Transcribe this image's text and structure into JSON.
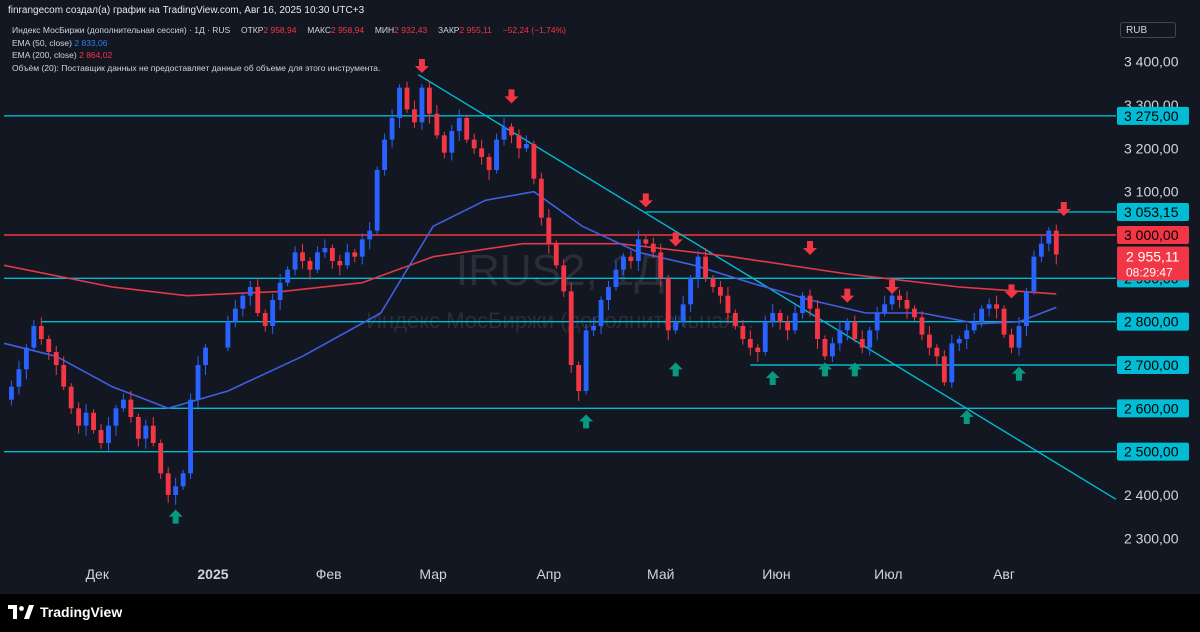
{
  "header": {
    "credit": "finrangecom создал(а) график на TradingView.com, Авг 16, 2025 10:30 UTC+3",
    "symbol": "Индекс МосБиржи (дополнительная сессия) · 1Д · RUS",
    "ohlc": {
      "open_label": "ОТКР",
      "open": "2 958,94",
      "high_label": "МАКС",
      "high": "2 958,94",
      "low_label": "МИН",
      "low": "2 932,43",
      "close_label": "ЗАКР",
      "close": "2 955,11",
      "change": "−52,24 (−1,74%)"
    },
    "ema50": {
      "label": "EMA (50, close)",
      "value": "2 833,06"
    },
    "ema200": {
      "label": "EMA (200, close)",
      "value": "2 864,02"
    },
    "volume_note": "Объём (20): Поставщик данных не предоставляет данные об объеме для этого инструмента.",
    "currency": "RUB"
  },
  "watermark": {
    "symbol": "IRUS2, 1Д",
    "name": "Индекс МосБиржи (дополнительная..."
  },
  "footer": {
    "brand": "TradingView"
  },
  "colors": {
    "background": "#131722",
    "up": "#2962ff",
    "down": "#f23645",
    "ema50": "#3f5fe0",
    "ema200": "#e0394a",
    "level": "#00bcd4",
    "resistance": "#f23645",
    "arrow_up": "#089981",
    "arrow_down": "#f23645"
  },
  "chart_data": {
    "type": "candlestick",
    "y_axis": {
      "min": 2250,
      "max": 3450,
      "ticks": [
        2300,
        2400,
        2500,
        2600,
        2700,
        2800,
        2900,
        3000,
        3100,
        3200,
        3300,
        3400
      ],
      "tick_labels": [
        "2 300,00",
        "2 400,00",
        "2 500,00",
        "2 600,00",
        "2 700,00",
        "2 800,00",
        "2 900,00",
        "3 000,00",
        "3 100,00",
        "3 200,00",
        "3 300,00",
        "3 400,00"
      ]
    },
    "x_axis": {
      "start": "2024-11-06",
      "end": "2025-08-31",
      "ticks": [
        {
          "date": "2024-12-01",
          "label": "Дек"
        },
        {
          "date": "2025-01-01",
          "label": "2025",
          "bold": true
        },
        {
          "date": "2025-02-01",
          "label": "Фев"
        },
        {
          "date": "2025-03-01",
          "label": "Мар"
        },
        {
          "date": "2025-04-01",
          "label": "Апр"
        },
        {
          "date": "2025-05-01",
          "label": "Май"
        },
        {
          "date": "2025-06-01",
          "label": "Июн"
        },
        {
          "date": "2025-07-01",
          "label": "Июл"
        },
        {
          "date": "2025-08-01",
          "label": "Авг"
        }
      ]
    },
    "closes": [
      [
        "2024-11-06",
        2620
      ],
      [
        "2024-11-08",
        2650
      ],
      [
        "2024-11-10",
        2690
      ],
      [
        "2024-11-12",
        2740
      ],
      [
        "2024-11-14",
        2790
      ],
      [
        "2024-11-16",
        2760
      ],
      [
        "2024-11-18",
        2730
      ],
      [
        "2024-11-20",
        2700
      ],
      [
        "2024-11-22",
        2650
      ],
      [
        "2024-11-24",
        2600
      ],
      [
        "2024-11-26",
        2560
      ],
      [
        "2024-11-28",
        2590
      ],
      [
        "2024-11-30",
        2550
      ],
      [
        "2024-12-02",
        2520
      ],
      [
        "2024-12-04",
        2560
      ],
      [
        "2024-12-06",
        2600
      ],
      [
        "2024-12-08",
        2620
      ],
      [
        "2024-12-10",
        2580
      ],
      [
        "2024-12-12",
        2530
      ],
      [
        "2024-12-14",
        2560
      ],
      [
        "2024-12-16",
        2520
      ],
      [
        "2024-12-18",
        2450
      ],
      [
        "2024-12-20",
        2400
      ],
      [
        "2024-12-22",
        2420
      ],
      [
        "2024-12-24",
        2450
      ],
      [
        "2024-12-26",
        2620
      ],
      [
        "2024-12-28",
        2700
      ],
      [
        "2024-12-30",
        2740
      ],
      [
        "2025-01-05",
        2800
      ],
      [
        "2025-01-07",
        2830
      ],
      [
        "2025-01-09",
        2860
      ],
      [
        "2025-01-11",
        2880
      ],
      [
        "2025-01-13",
        2820
      ],
      [
        "2025-01-15",
        2790
      ],
      [
        "2025-01-17",
        2850
      ],
      [
        "2025-01-19",
        2890
      ],
      [
        "2025-01-21",
        2920
      ],
      [
        "2025-01-23",
        2960
      ],
      [
        "2025-01-25",
        2940
      ],
      [
        "2025-01-27",
        2920
      ],
      [
        "2025-01-29",
        2960
      ],
      [
        "2025-01-31",
        2970
      ],
      [
        "2025-02-02",
        2940
      ],
      [
        "2025-02-04",
        2930
      ],
      [
        "2025-02-06",
        2960
      ],
      [
        "2025-02-08",
        2950
      ],
      [
        "2025-02-10",
        2990
      ],
      [
        "2025-02-12",
        3010
      ],
      [
        "2025-02-14",
        3150
      ],
      [
        "2025-02-16",
        3220
      ],
      [
        "2025-02-18",
        3270
      ],
      [
        "2025-02-20",
        3340
      ],
      [
        "2025-02-22",
        3290
      ],
      [
        "2025-02-24",
        3260
      ],
      [
        "2025-02-26",
        3340
      ],
      [
        "2025-02-28",
        3280
      ],
      [
        "2025-03-02",
        3230
      ],
      [
        "2025-03-04",
        3190
      ],
      [
        "2025-03-06",
        3240
      ],
      [
        "2025-03-08",
        3270
      ],
      [
        "2025-03-10",
        3220
      ],
      [
        "2025-03-12",
        3200
      ],
      [
        "2025-03-14",
        3180
      ],
      [
        "2025-03-16",
        3150
      ],
      [
        "2025-03-18",
        3220
      ],
      [
        "2025-03-20",
        3250
      ],
      [
        "2025-03-22",
        3230
      ],
      [
        "2025-03-24",
        3200
      ],
      [
        "2025-03-26",
        3210
      ],
      [
        "2025-03-28",
        3130
      ],
      [
        "2025-03-30",
        3040
      ],
      [
        "2025-04-01",
        2980
      ],
      [
        "2025-04-03",
        2930
      ],
      [
        "2025-04-05",
        2870
      ],
      [
        "2025-04-07",
        2700
      ],
      [
        "2025-04-09",
        2640
      ],
      [
        "2025-04-11",
        2780
      ],
      [
        "2025-04-13",
        2790
      ],
      [
        "2025-04-15",
        2850
      ],
      [
        "2025-04-17",
        2880
      ],
      [
        "2025-04-19",
        2920
      ],
      [
        "2025-04-21",
        2950
      ],
      [
        "2025-04-23",
        2940
      ],
      [
        "2025-04-25",
        2990
      ],
      [
        "2025-04-27",
        2980
      ],
      [
        "2025-04-29",
        2960
      ],
      [
        "2025-05-01",
        2900
      ],
      [
        "2025-05-03",
        2780
      ],
      [
        "2025-05-05",
        2800
      ],
      [
        "2025-05-07",
        2840
      ],
      [
        "2025-05-09",
        2900
      ],
      [
        "2025-05-11",
        2950
      ],
      [
        "2025-05-13",
        2900
      ],
      [
        "2025-05-15",
        2880
      ],
      [
        "2025-05-17",
        2860
      ],
      [
        "2025-05-19",
        2820
      ],
      [
        "2025-05-21",
        2790
      ],
      [
        "2025-05-23",
        2760
      ],
      [
        "2025-05-25",
        2740
      ],
      [
        "2025-05-27",
        2730
      ],
      [
        "2025-05-29",
        2800
      ],
      [
        "2025-05-31",
        2820
      ],
      [
        "2025-06-02",
        2800
      ],
      [
        "2025-06-04",
        2780
      ],
      [
        "2025-06-06",
        2820
      ],
      [
        "2025-06-08",
        2860
      ],
      [
        "2025-06-10",
        2830
      ],
      [
        "2025-06-12",
        2760
      ],
      [
        "2025-06-14",
        2720
      ],
      [
        "2025-06-16",
        2750
      ],
      [
        "2025-06-18",
        2780
      ],
      [
        "2025-06-20",
        2800
      ],
      [
        "2025-06-22",
        2760
      ],
      [
        "2025-06-24",
        2740
      ],
      [
        "2025-06-26",
        2780
      ],
      [
        "2025-06-28",
        2820
      ],
      [
        "2025-06-30",
        2840
      ],
      [
        "2025-07-02",
        2860
      ],
      [
        "2025-07-04",
        2850
      ],
      [
        "2025-07-06",
        2830
      ],
      [
        "2025-07-08",
        2810
      ],
      [
        "2025-07-10",
        2770
      ],
      [
        "2025-07-12",
        2740
      ],
      [
        "2025-07-14",
        2720
      ],
      [
        "2025-07-16",
        2660
      ],
      [
        "2025-07-18",
        2750
      ],
      [
        "2025-07-20",
        2760
      ],
      [
        "2025-07-22",
        2780
      ],
      [
        "2025-07-24",
        2800
      ],
      [
        "2025-07-26",
        2830
      ],
      [
        "2025-07-28",
        2840
      ],
      [
        "2025-07-30",
        2830
      ],
      [
        "2025-08-01",
        2770
      ],
      [
        "2025-08-03",
        2740
      ],
      [
        "2025-08-05",
        2790
      ],
      [
        "2025-08-07",
        2870
      ],
      [
        "2025-08-09",
        2950
      ],
      [
        "2025-08-11",
        2980
      ],
      [
        "2025-08-13",
        3010
      ],
      [
        "2025-08-15",
        2955
      ]
    ],
    "ema50": [
      [
        "2024-11-06",
        2750
      ],
      [
        "2024-11-20",
        2720
      ],
      [
        "2024-12-05",
        2650
      ],
      [
        "2024-12-20",
        2600
      ],
      [
        "2025-01-05",
        2640
      ],
      [
        "2025-01-25",
        2720
      ],
      [
        "2025-02-15",
        2820
      ],
      [
        "2025-03-01",
        3020
      ],
      [
        "2025-03-15",
        3080
      ],
      [
        "2025-03-28",
        3100
      ],
      [
        "2025-04-10",
        3020
      ],
      [
        "2025-04-25",
        2960
      ],
      [
        "2025-05-10",
        2930
      ],
      [
        "2025-05-25",
        2890
      ],
      [
        "2025-06-10",
        2850
      ],
      [
        "2025-06-25",
        2820
      ],
      [
        "2025-07-10",
        2820
      ],
      [
        "2025-07-25",
        2795
      ],
      [
        "2025-08-05",
        2800
      ],
      [
        "2025-08-15",
        2833
      ]
    ],
    "ema200": [
      [
        "2024-11-06",
        2930
      ],
      [
        "2024-12-05",
        2880
      ],
      [
        "2024-12-25",
        2860
      ],
      [
        "2025-01-20",
        2870
      ],
      [
        "2025-02-10",
        2890
      ],
      [
        "2025-03-01",
        2950
      ],
      [
        "2025-03-25",
        2980
      ],
      [
        "2025-04-20",
        2980
      ],
      [
        "2025-05-20",
        2950
      ],
      [
        "2025-06-20",
        2910
      ],
      [
        "2025-07-20",
        2880
      ],
      [
        "2025-08-15",
        2864
      ]
    ],
    "levels": [
      {
        "value": 3275,
        "label": "3 275,00",
        "type": "support",
        "start": "2024-11-06"
      },
      {
        "value": 3053.15,
        "label": "3 053,15",
        "type": "support",
        "start": "2025-04-27"
      },
      {
        "value": 3000,
        "label": "3 000,00",
        "type": "resistance",
        "start": "2024-11-06"
      },
      {
        "value": 2900,
        "label": "2 900,00",
        "type": "support",
        "start": "2024-11-06"
      },
      {
        "value": 2800,
        "label": "2 800,00",
        "type": "support",
        "start": "2024-11-16"
      },
      {
        "value": 2700,
        "label": "2 700,00",
        "type": "support",
        "start": "2025-05-25"
      },
      {
        "value": 2600,
        "label": "2 600,00",
        "type": "support",
        "start": "2024-12-10"
      },
      {
        "value": 2500,
        "label": "2 500,00",
        "type": "support",
        "start": "2024-11-06"
      }
    ],
    "last_price": {
      "value": 2955.11,
      "label": "2 955,11",
      "countdown": "08:29:47"
    },
    "trendline": {
      "from": [
        "2025-02-25",
        3370
      ],
      "to": [
        "2025-08-31",
        2390
      ]
    },
    "arrows_up": [
      [
        "2024-12-22",
        2350
      ],
      [
        "2025-04-11",
        2570
      ],
      [
        "2025-05-05",
        2690
      ],
      [
        "2025-05-31",
        2670
      ],
      [
        "2025-06-14",
        2690
      ],
      [
        "2025-06-22",
        2690
      ],
      [
        "2025-07-22",
        2580
      ],
      [
        "2025-08-05",
        2680
      ]
    ],
    "arrows_down": [
      [
        "2025-02-26",
        3390
      ],
      [
        "2025-03-22",
        3320
      ],
      [
        "2025-04-27",
        3080
      ],
      [
        "2025-05-05",
        2990
      ],
      [
        "2025-06-10",
        2970
      ],
      [
        "2025-06-20",
        2860
      ],
      [
        "2025-07-02",
        2880
      ],
      [
        "2025-08-03",
        2870
      ],
      [
        "2025-08-17",
        3060
      ]
    ]
  }
}
